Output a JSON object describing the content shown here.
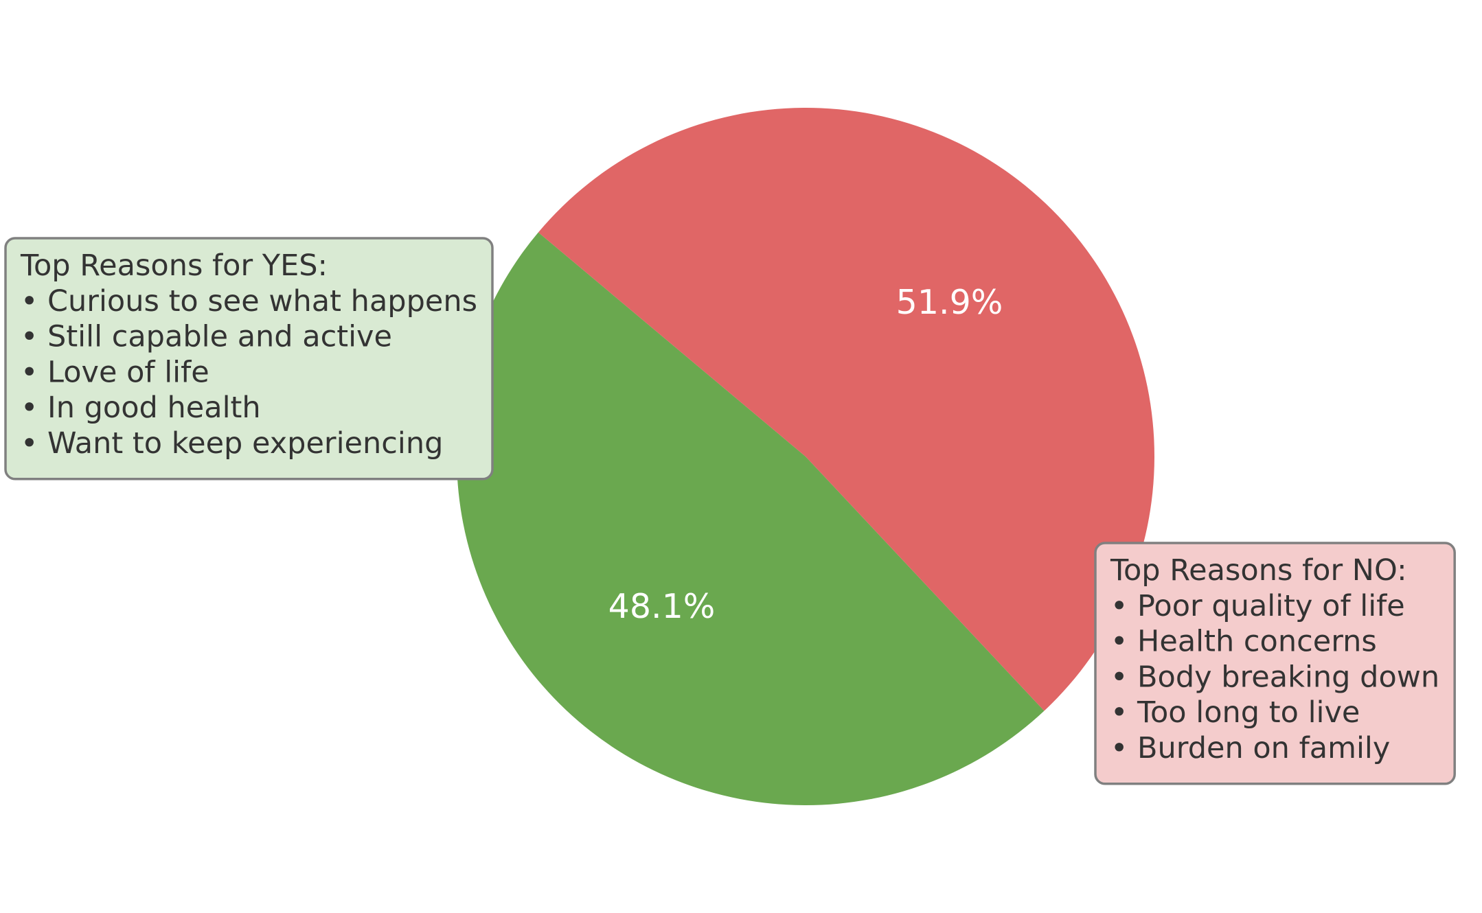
{
  "chart_data": {
    "type": "pie",
    "values": [
      48.1,
      51.9
    ],
    "value_labels": [
      "48.1%",
      "51.9%"
    ],
    "colors": [
      "#6aa84f",
      "#e06666"
    ],
    "start_angle": 140,
    "annotations": [
      {
        "lines": [
          "Top Reasons for YES:",
          "• Curious to see what happens",
          "• Still capable and active",
          "• Love of life",
          "• In good health",
          "• Want to keep experiencing"
        ],
        "color": "#d9ead3"
      },
      {
        "lines": [
          "Top Reasons for NO:",
          "• Poor quality of life",
          "• Health concerns",
          "• Body breaking down",
          "• Too long to live",
          "• Burden on family"
        ],
        "color": "#f4cccc"
      }
    ]
  }
}
